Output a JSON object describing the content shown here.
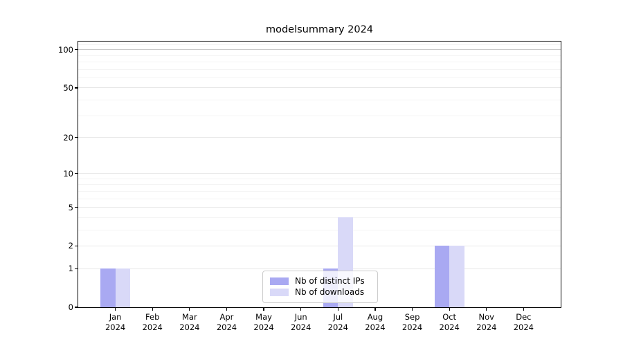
{
  "chart_data": {
    "type": "bar",
    "title": "modelsummary 2024",
    "categories": [
      "Jan 2024",
      "Feb 2024",
      "Mar 2024",
      "Apr 2024",
      "May 2024",
      "Jun 2024",
      "Jul 2024",
      "Aug 2024",
      "Sep 2024",
      "Oct 2024",
      "Nov 2024",
      "Dec 2024"
    ],
    "series": [
      {
        "name": "Nb of distinct IPs",
        "color": "#a9a9f2",
        "values": [
          1,
          0,
          0,
          0,
          0,
          0,
          1,
          0,
          0,
          2,
          0,
          0
        ]
      },
      {
        "name": "Nb of downloads",
        "color": "#d9d9f8",
        "values": [
          1,
          0,
          0,
          0,
          0,
          0,
          4,
          0,
          0,
          2,
          0,
          0
        ]
      }
    ],
    "xlabel": "",
    "ylabel": "",
    "y_ticks": [
      0,
      1,
      2,
      5,
      10,
      20,
      50,
      100
    ],
    "y_minor_ticks": [
      3,
      4,
      6,
      7,
      8,
      9,
      30,
      40,
      60,
      70,
      80,
      90,
      110
    ],
    "y_scale": "log1p",
    "ylim": [
      0,
      116
    ],
    "grid": true,
    "legend_position": "lower center"
  },
  "colors": {
    "background": "#ffffff",
    "spine": "#000000",
    "text": "#000000",
    "grid_major": "#e8e8e8",
    "grid_minor": "#f4f4f4",
    "grid_top": "#c9c9c9"
  }
}
